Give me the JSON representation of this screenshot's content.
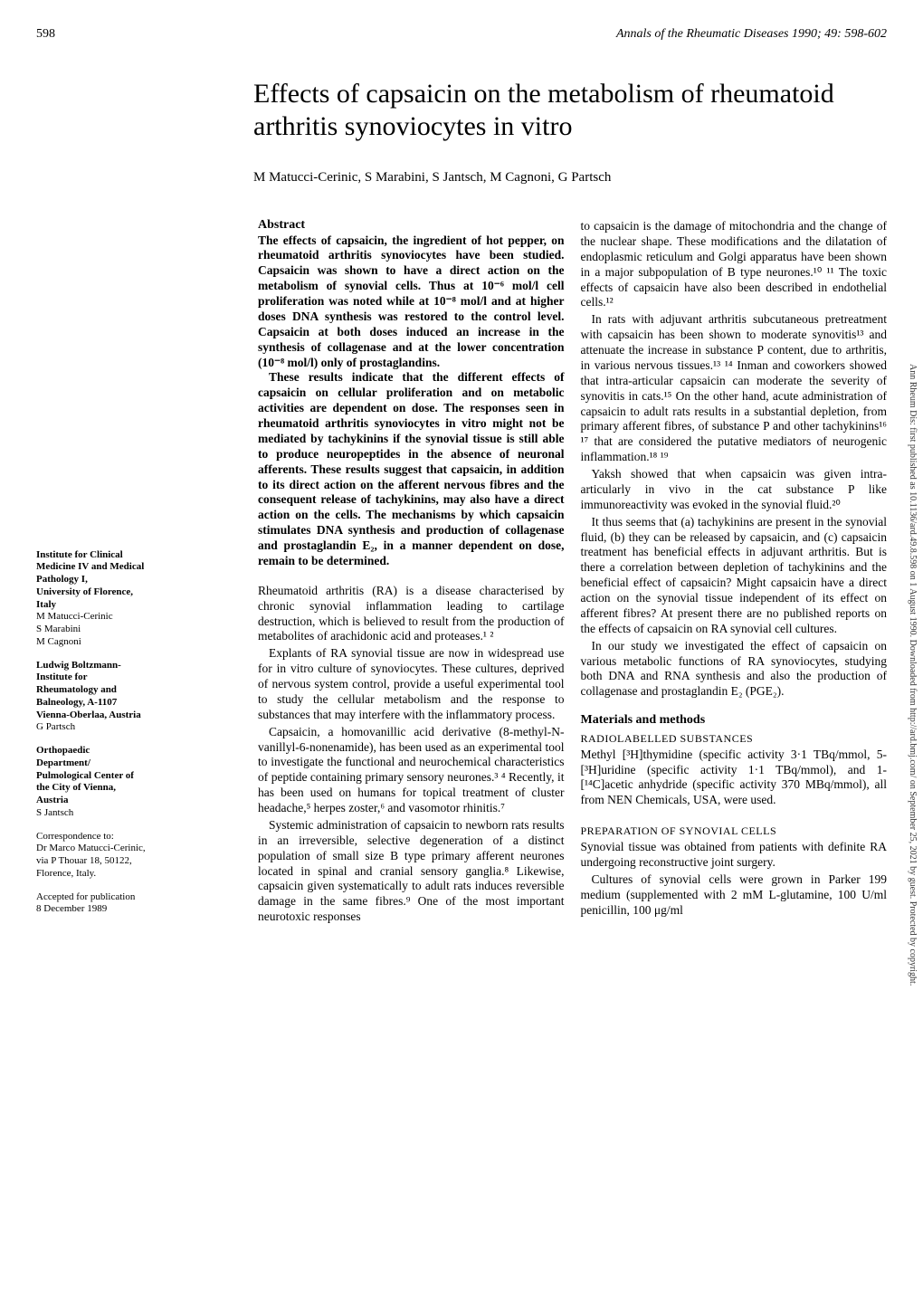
{
  "header": {
    "page_number": "598",
    "journal_ref": "Annals of the Rheumatic Diseases 1990; 49: 598-602"
  },
  "title": "Effects of capsaicin on the metabolism of rheumatoid arthritis synoviocytes in vitro",
  "authors": "M Matucci-Cerinic, S Marabini, S Jantsch, M Cagnoni, G Partsch",
  "sidebar": {
    "affil1": {
      "line1": "Institute for Clinical",
      "line2": "Medicine IV and Medical",
      "line3": "Pathology I,",
      "line4": "University of Florence,",
      "line5": "Italy",
      "name1": "M Matucci-Cerinic",
      "name2": "S Marabini",
      "name3": "M Cagnoni"
    },
    "affil2": {
      "line1": "Ludwig Boltzmann-",
      "line2": "Institute for",
      "line3": "Rheumatology and",
      "line4": "Balneology, A-1107",
      "line5": "Vienna-Oberlaa, Austria",
      "name1": "G Partsch"
    },
    "affil3": {
      "line1": "Orthopaedic",
      "line2": "Department/",
      "line3": "Pulmological Center of",
      "line4": "the City of Vienna,",
      "line5": "Austria",
      "name1": "S Jantsch"
    },
    "corr": {
      "line1": "Correspondence to:",
      "line2": "Dr Marco Matucci-Cerinic,",
      "line3": "via P Thouar 18, 50122,",
      "line4": "Florence, Italy."
    },
    "accepted": {
      "line1": "Accepted for publication",
      "line2": "8 December 1989"
    }
  },
  "col1": {
    "abstract_heading": "Abstract",
    "abs_p1": "The effects of capsaicin, the ingredient of hot pepper, on rheumatoid arthritis synoviocytes have been studied. Capsaicin was shown to have a direct action on the metabolism of synovial cells. Thus at 10⁻⁶ mol/l cell proliferation was noted while at 10⁻⁸ mol/l and at higher doses DNA synthesis was restored to the control level. Capsaicin at both doses induced an increase in the synthesis of collagenase and at the lower concentration (10⁻⁸ mol/l) only of prostaglandins.",
    "abs_p2": "These results indicate that the different effects of capsaicin on cellular proliferation and on metabolic activities are dependent on dose. The responses seen in rheumatoid arthritis synoviocytes in vitro might not be mediated by tachykinins if the synovial tissue is still able to produce neuropeptides in the absence of neuronal afferents. These results suggest that capsaicin, in addition to its direct action on the afferent nervous fibres and the consequent release of tachykinins, may also have a direct action on the cells. The mechanisms by which capsaicin stimulates DNA synthesis and production of collagenase and prostaglandin E₂, in a manner dependent on dose, remain to be determined.",
    "body_p1": "Rheumatoid arthritis (RA) is a disease characterised by chronic synovial inflammation leading to cartilage destruction, which is believed to result from the production of metabolites of arachidonic acid and proteases.¹ ²",
    "body_p2": "Explants of RA synovial tissue are now in widespread use for in vitro culture of synoviocytes. These cultures, deprived of nervous system control, provide a useful experimental tool to study the cellular metabolism and the response to substances that may interfere with the inflammatory process.",
    "body_p3": "Capsaicin, a homovanillic acid derivative (8-methyl-N-vanillyl-6-nonenamide), has been used as an experimental tool to investigate the functional and neurochemical characteristics of peptide containing primary sensory neurones.³ ⁴ Recently, it has been used on humans for topical treatment of cluster headache,⁵ herpes zoster,⁶ and vasomotor rhinitis.⁷",
    "body_p4": "Systemic administration of capsaicin to newborn rats results in an irreversible, selective degeneration of a distinct population of small size B type primary afferent neurones located in spinal and cranial sensory ganglia.⁸ Likewise, capsaicin given systematically to adult rats induces reversible damage in the same fibres.⁹ One of the most important neurotoxic responses"
  },
  "col2": {
    "body_p1": "to capsaicin is the damage of mitochondria and the change of the nuclear shape. These modifications and the dilatation of endoplasmic reticulum and Golgi apparatus have been shown in a major subpopulation of B type neurones.¹⁰ ¹¹ The toxic effects of capsaicin have also been described in endothelial cells.¹²",
    "body_p2": "In rats with adjuvant arthritis subcutaneous pretreatment with capsaicin has been shown to moderate synovitis¹³ and attenuate the increase in substance P content, due to arthritis, in various nervous tissues.¹³ ¹⁴ Inman and coworkers showed that intra-articular capsaicin can moderate the severity of synovitis in cats.¹⁵ On the other hand, acute administration of capsaicin to adult rats results in a substantial depletion, from primary afferent fibres, of substance P and other tachykinins¹⁶ ¹⁷ that are considered the putative mediators of neurogenic inflammation.¹⁸ ¹⁹",
    "body_p3": "Yaksh showed that when capsaicin was given intra-articularly in vivo in the cat substance P like immunoreactivity was evoked in the synovial fluid.²⁰",
    "body_p4": "It thus seems that (a) tachykinins are present in the synovial fluid, (b) they can be released by capsaicin, and (c) capsaicin treatment has beneficial effects in adjuvant arthritis. But is there a correlation between depletion of tachykinins and the beneficial effect of capsaicin? Might capsaicin have a direct action on the synovial tissue independent of its effect on afferent fibres? At present there are no published reports on the effects of capsaicin on RA synovial cell cultures.",
    "body_p5": "In our study we investigated the effect of capsaicin on various metabolic functions of RA synoviocytes, studying both DNA and RNA synthesis and also the production of collagenase and prostaglandin E₂ (PGE₂).",
    "materials_heading": "Materials and methods",
    "sub1": "RADIOLABELLED SUBSTANCES",
    "mat_p1": "Methyl [³H]thymidine (specific activity 3·1 TBq/mmol, 5-[³H]uridine (specific activity 1·1 TBq/mmol), and 1-[¹⁴C]acetic anhydride (specific activity 370 MBq/mmol), all from NEN Chemicals, USA, were used.",
    "sub2": "PREPARATION OF SYNOVIAL CELLS",
    "mat_p2": "Synovial tissue was obtained from patients with definite RA undergoing reconstructive joint surgery.",
    "mat_p3": "Cultures of synovial cells were grown in Parker 199 medium (supplemented with 2 mM L-glutamine, 100 U/ml penicillin, 100 μg/ml"
  },
  "vertical_note": "Ann Rheum Dis: first published as 10.1136/ard.49.8.598 on 1 August 1990. Downloaded from http://ard.bmj.com/ on September 25, 2021 by guest. Protected by copyright."
}
